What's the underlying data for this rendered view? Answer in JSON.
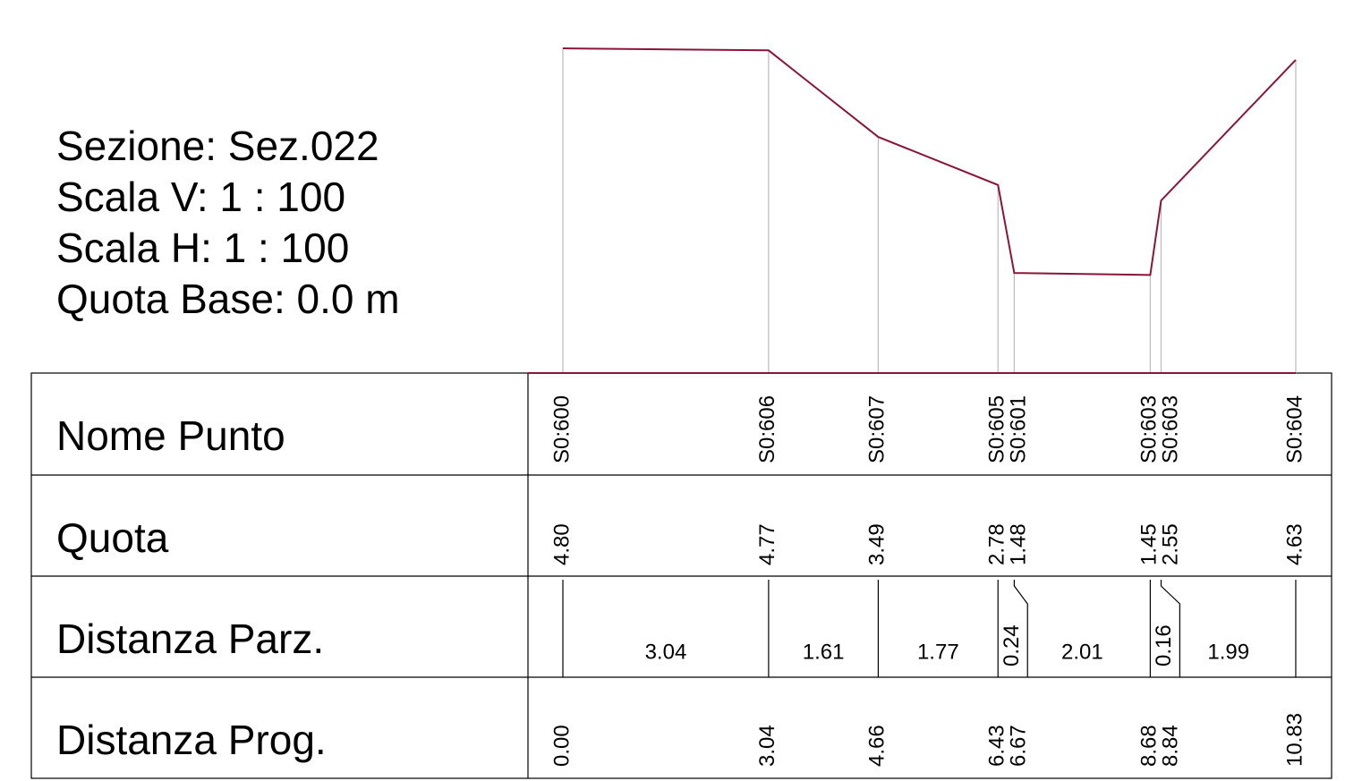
{
  "info": [
    "Sezione: Sez.022",
    "Scala V: 1 : 100",
    "Scala H: 1 : 100",
    "Quota Base: 0.0 m"
  ],
  "rows": [
    "Nome Punto",
    "Quota",
    "Distanza Parz.",
    "Distanza Prog."
  ],
  "points": [
    {
      "name": "S0:600",
      "quota": "4.80",
      "prog": "0.00"
    },
    {
      "name": "S0:606",
      "quota": "4.77",
      "prog": "3.04"
    },
    {
      "name": "S0:607",
      "quota": "3.49",
      "prog": "4.66"
    },
    {
      "name": "S0:605",
      "quota": "2.78",
      "prog": "6.43"
    },
    {
      "name": "S0:601",
      "quota": "1.48",
      "prog": "6.67"
    },
    {
      "name": "S0:603",
      "quota": "1.45",
      "prog": "8.68"
    },
    {
      "name": "S0:603",
      "quota": "2.55",
      "prog": "8.84"
    },
    {
      "name": "S0:604",
      "quota": "4.63",
      "prog": "10.83"
    }
  ],
  "partial": [
    "3.04",
    "1.61",
    "1.77",
    "0.24",
    "2.01",
    "0.16",
    "1.99"
  ]
}
